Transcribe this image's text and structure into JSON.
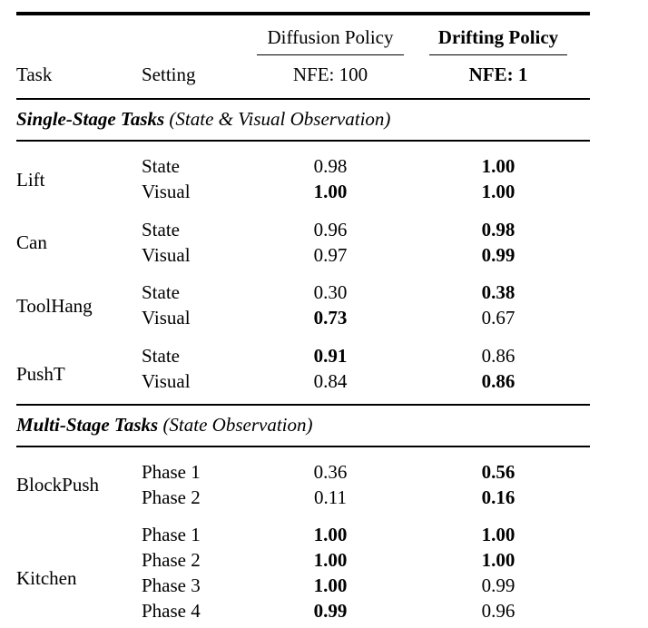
{
  "header": {
    "task": "Task",
    "setting": "Setting",
    "col1": {
      "title": "Diffusion Policy",
      "sub": "NFE: 100"
    },
    "col2": {
      "title": "Drifting Policy",
      "sub": "NFE: 1"
    }
  },
  "sections": [
    {
      "title": "Single-Stage Tasks",
      "subtitle": "(State & Visual Observation)",
      "groups": [
        {
          "task": "Lift",
          "rows": [
            {
              "setting": "State",
              "c1": {
                "v": "0.98",
                "b": false
              },
              "c2": {
                "v": "1.00",
                "b": true
              }
            },
            {
              "setting": "Visual",
              "c1": {
                "v": "1.00",
                "b": true
              },
              "c2": {
                "v": "1.00",
                "b": true
              }
            }
          ]
        },
        {
          "task": "Can",
          "rows": [
            {
              "setting": "State",
              "c1": {
                "v": "0.96",
                "b": false
              },
              "c2": {
                "v": "0.98",
                "b": true
              }
            },
            {
              "setting": "Visual",
              "c1": {
                "v": "0.97",
                "b": false
              },
              "c2": {
                "v": "0.99",
                "b": true
              }
            }
          ]
        },
        {
          "task": "ToolHang",
          "rows": [
            {
              "setting": "State",
              "c1": {
                "v": "0.30",
                "b": false
              },
              "c2": {
                "v": "0.38",
                "b": true
              }
            },
            {
              "setting": "Visual",
              "c1": {
                "v": "0.73",
                "b": true
              },
              "c2": {
                "v": "0.67",
                "b": false
              }
            }
          ]
        },
        {
          "task": "PushT",
          "rows": [
            {
              "setting": "State",
              "c1": {
                "v": "0.91",
                "b": true
              },
              "c2": {
                "v": "0.86",
                "b": false
              }
            },
            {
              "setting": "Visual",
              "c1": {
                "v": "0.84",
                "b": false
              },
              "c2": {
                "v": "0.86",
                "b": true
              }
            }
          ]
        }
      ]
    },
    {
      "title": "Multi-Stage Tasks",
      "subtitle": "(State Observation)",
      "groups": [
        {
          "task": "BlockPush",
          "rows": [
            {
              "setting": "Phase 1",
              "c1": {
                "v": "0.36",
                "b": false
              },
              "c2": {
                "v": "0.56",
                "b": true
              }
            },
            {
              "setting": "Phase 2",
              "c1": {
                "v": "0.11",
                "b": false
              },
              "c2": {
                "v": "0.16",
                "b": true
              }
            }
          ]
        },
        {
          "task": "Kitchen",
          "rows": [
            {
              "setting": "Phase 1",
              "c1": {
                "v": "1.00",
                "b": true
              },
              "c2": {
                "v": "1.00",
                "b": true
              }
            },
            {
              "setting": "Phase 2",
              "c1": {
                "v": "1.00",
                "b": true
              },
              "c2": {
                "v": "1.00",
                "b": true
              }
            },
            {
              "setting": "Phase 3",
              "c1": {
                "v": "1.00",
                "b": true
              },
              "c2": {
                "v": "0.99",
                "b": false
              }
            },
            {
              "setting": "Phase 4",
              "c1": {
                "v": "0.99",
                "b": true
              },
              "c2": {
                "v": "0.96",
                "b": false
              }
            }
          ]
        }
      ]
    }
  ]
}
